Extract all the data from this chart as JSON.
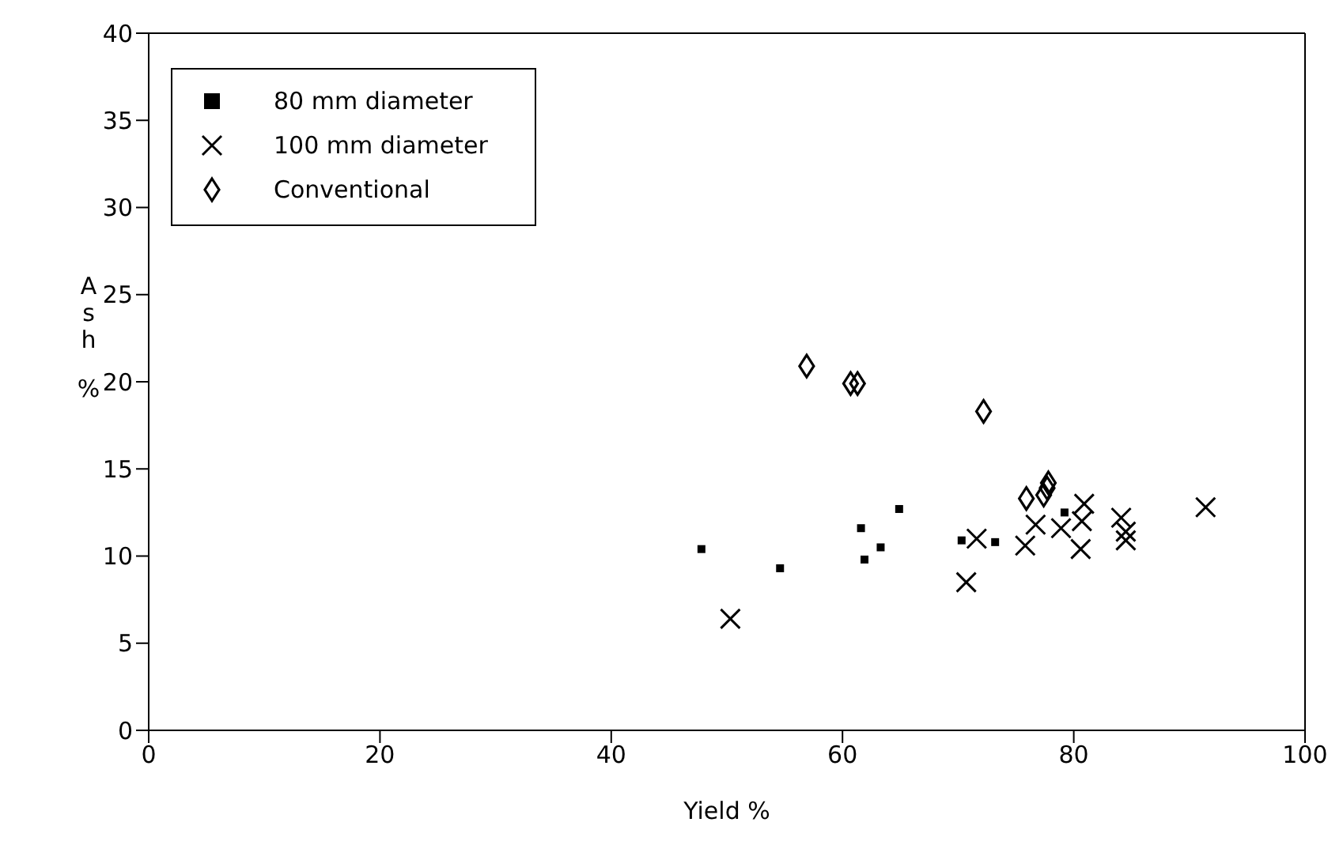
{
  "chart_data": {
    "type": "scatter",
    "xlabel": "Yield %",
    "ylabel": "Ash %",
    "xlim": [
      0,
      100
    ],
    "xticks": [
      0,
      20,
      40,
      60,
      80,
      100
    ],
    "ylim": [
      0,
      40
    ],
    "yticks": [
      0,
      5,
      10,
      15,
      20,
      25,
      30,
      35,
      40
    ],
    "grid": false,
    "legend": "top left",
    "series": [
      {
        "name": "80 mm diameter",
        "color": "#000000",
        "marker": "square",
        "x": [
          47.8,
          54.6,
          61.6,
          61.9,
          63.3,
          64.9,
          70.3,
          73.2,
          79.2
        ],
        "values": [
          10.4,
          9.3,
          11.6,
          9.8,
          10.5,
          12.7,
          10.9,
          10.8,
          12.5
        ]
      },
      {
        "name": "100 mm diameter",
        "color": "#000000",
        "marker": "cross",
        "x": [
          50.3,
          70.7,
          71.6,
          75.8,
          76.7,
          78.9,
          80.7,
          80.9,
          80.6,
          84.1,
          84.5,
          84.5,
          91.4
        ],
        "values": [
          6.4,
          8.5,
          11.0,
          10.6,
          11.8,
          11.6,
          12.0,
          13.0,
          10.4,
          12.2,
          11.4,
          10.9,
          12.8
        ]
      },
      {
        "name": "Conventional",
        "color": "#000000",
        "marker": "diamond",
        "x": [
          56.9,
          60.7,
          61.3,
          72.2,
          75.9,
          77.4,
          77.8,
          77.7
        ],
        "values": [
          20.9,
          19.9,
          19.9,
          18.3,
          13.3,
          13.5,
          14.2,
          13.9
        ]
      }
    ]
  }
}
